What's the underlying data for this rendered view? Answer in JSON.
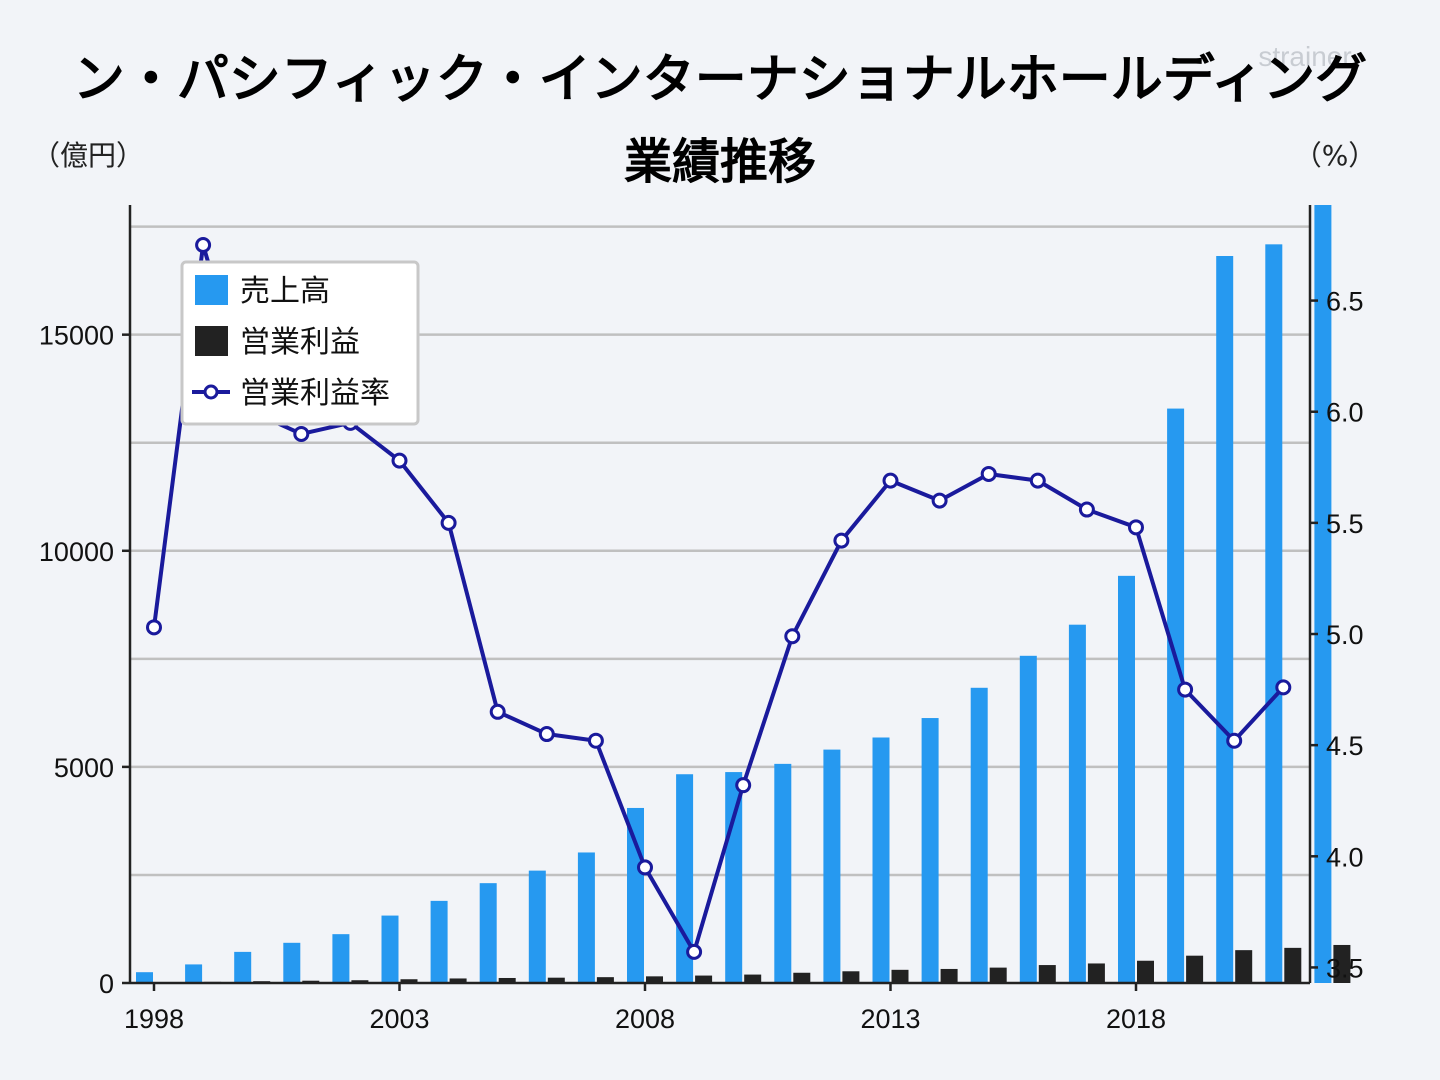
{
  "title": "ン・パシフィック・インターナショナルホールディング",
  "subtitle": "業績推移",
  "watermark": "strainer",
  "colors": {
    "sales": "#2699f0",
    "op_profit": "#222222",
    "margin": "#1a1a9c",
    "grid": "#c0c0c0",
    "background": "#f2f4f8"
  },
  "chart_data": {
    "type": "bar",
    "categories": [
      1998,
      1999,
      2000,
      2001,
      2002,
      2003,
      2004,
      2005,
      2006,
      2007,
      2008,
      2009,
      2010,
      2011,
      2012,
      2013,
      2014,
      2015,
      2016,
      2017,
      2018,
      2019,
      2020,
      2021,
      2022
    ],
    "series": [
      {
        "name": "売上高",
        "type": "bar",
        "axis": "left",
        "values": [
          250,
          430,
          720,
          930,
          1130,
          1560,
          1900,
          2310,
          2600,
          3020,
          4050,
          4830,
          4880,
          5070,
          5400,
          5680,
          6130,
          6830,
          7570,
          8290,
          9420,
          13290,
          16820,
          17090,
          19000
        ]
      },
      {
        "name": "営業利益",
        "type": "bar",
        "axis": "left",
        "values": [
          13,
          26,
          42,
          53,
          64,
          87,
          105,
          116,
          123,
          135,
          154,
          172,
          195,
          237,
          271,
          305,
          325,
          356,
          415,
          452,
          515,
          632,
          760,
          813,
          880
        ]
      },
      {
        "name": "営業利益率",
        "type": "line",
        "axis": "right",
        "values": [
          5.03,
          6.75,
          6.0,
          5.9,
          5.95,
          5.78,
          5.5,
          4.65,
          4.55,
          4.52,
          3.95,
          3.57,
          4.32,
          4.99,
          5.42,
          5.69,
          5.6,
          5.72,
          5.69,
          5.56,
          5.48,
          4.75,
          4.52,
          4.76,
          4.65
        ]
      }
    ],
    "left_axis": {
      "label": "（億円）",
      "ylim": [
        0,
        18000
      ],
      "ticks": [
        0,
        5000,
        10000,
        15000
      ]
    },
    "right_axis": {
      "label": "（%）",
      "ylim": [
        3.43,
        6.93
      ],
      "ticks": [
        "3.5",
        "4.0",
        "4.5",
        "5.0",
        "5.5",
        "6.0",
        "6.5"
      ]
    },
    "x_tick_labels": [
      "1998",
      "2003",
      "2008",
      "2013",
      "2018"
    ],
    "legend": {
      "position": "top-left",
      "entries": [
        "売上高",
        "営業利益",
        "営業利益率"
      ]
    },
    "grid": true
  }
}
